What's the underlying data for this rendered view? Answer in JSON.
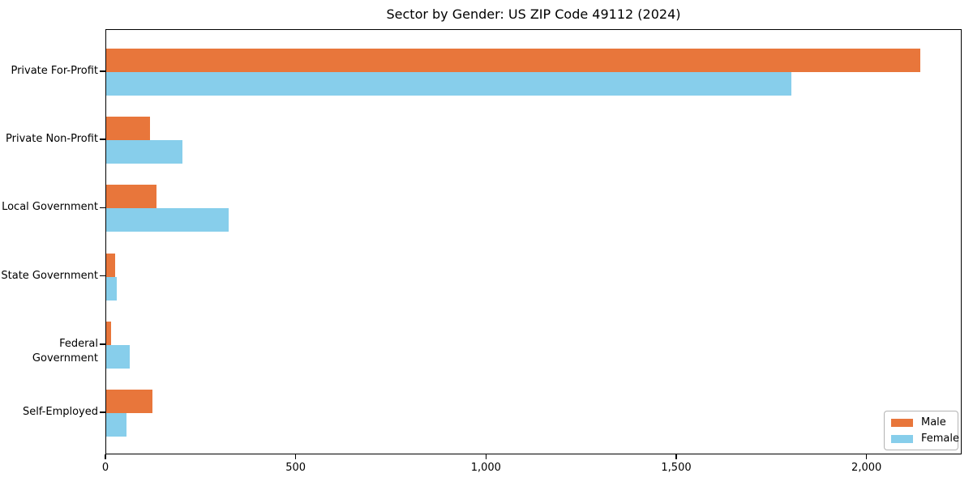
{
  "title": "Sector by Gender: US ZIP Code 49112 (2024)",
  "chart_data": {
    "type": "bar",
    "orientation": "horizontal",
    "title": "Sector by Gender: US ZIP Code 49112 (2024)",
    "categories": [
      "Private For-Profit",
      "Private Non-Profit",
      "Local Government",
      "State Government",
      "Federal Government",
      "Self-Employed"
    ],
    "series": [
      {
        "name": "Male",
        "color": "#e8763b",
        "values": [
          2143,
          115,
          132,
          23,
          13,
          121
        ]
      },
      {
        "name": "Female",
        "color": "#87ceeb",
        "values": [
          1804,
          200,
          322,
          28,
          62,
          53
        ]
      }
    ],
    "xlabel": "",
    "ylabel": "",
    "xlim": [
      0,
      2250
    ],
    "x_ticks": [
      0,
      500,
      1000,
      1500,
      2000
    ],
    "x_tick_labels": [
      "0",
      "500",
      "1,000",
      "1,500",
      "2,000"
    ],
    "grid": false,
    "legend_position": "lower right",
    "plot_background": "#ffffff",
    "spine_color": "#000000"
  },
  "legend": {
    "items": [
      {
        "label": "Male",
        "color": "#e8763b"
      },
      {
        "label": "Female",
        "color": "#87ceeb"
      }
    ]
  }
}
